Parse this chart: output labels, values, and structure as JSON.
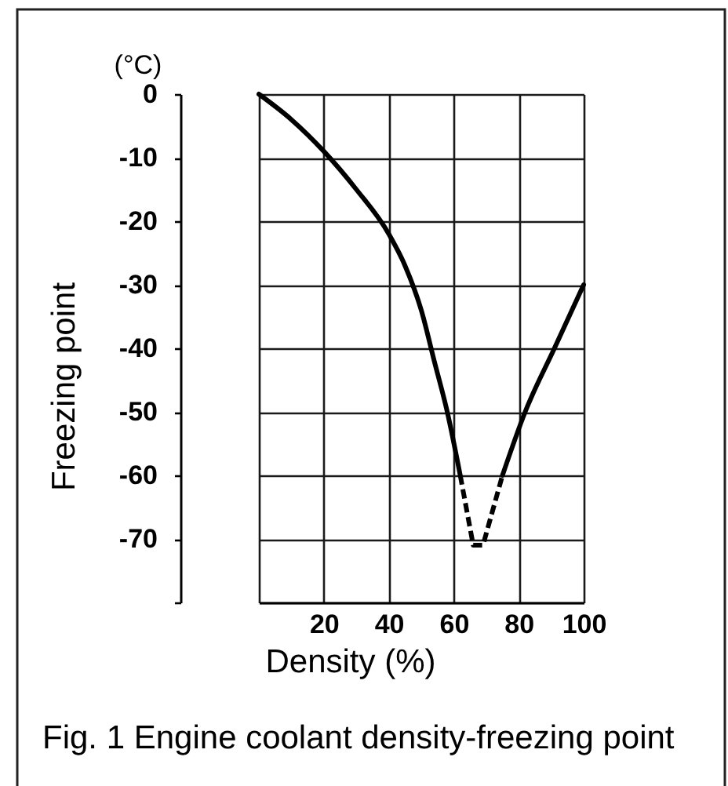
{
  "chart_data": {
    "type": "line",
    "xlabel": "Density (%)",
    "ylabel": "Freezing point",
    "annotations": [
      "(°C)",
      "Fig. 1 Engine coolant density-freezing point"
    ],
    "series": [
      {
        "x": [
          0,
          10,
          20,
          30,
          40,
          45,
          50,
          54,
          58,
          62
        ],
        "values": [
          0,
          -4,
          -9,
          -15,
          -22,
          -27,
          -34,
          -42,
          -50,
          -60
        ],
        "color": "#000000",
        "line_style": "solid"
      },
      {
        "x": [
          62,
          66,
          69,
          75
        ],
        "values": [
          -60,
          -71,
          -71,
          -60
        ],
        "color": "#000000",
        "line_style": "dashed"
      },
      {
        "x": [
          75,
          82,
          91,
          100
        ],
        "values": [
          -60,
          -50,
          -40,
          -30
        ],
        "color": "#000000",
        "line_style": "solid"
      }
    ],
    "xlim": [
      0,
      100
    ],
    "ylim": [
      -80,
      0
    ],
    "xticks": [
      {
        "value": 0,
        "label": null
      },
      20,
      40,
      60,
      80,
      100
    ],
    "yticks": [
      0,
      -10,
      -20,
      -30,
      -40,
      -50,
      -60,
      -70,
      {
        "value": -80,
        "label": null
      }
    ],
    "grid": true
  }
}
